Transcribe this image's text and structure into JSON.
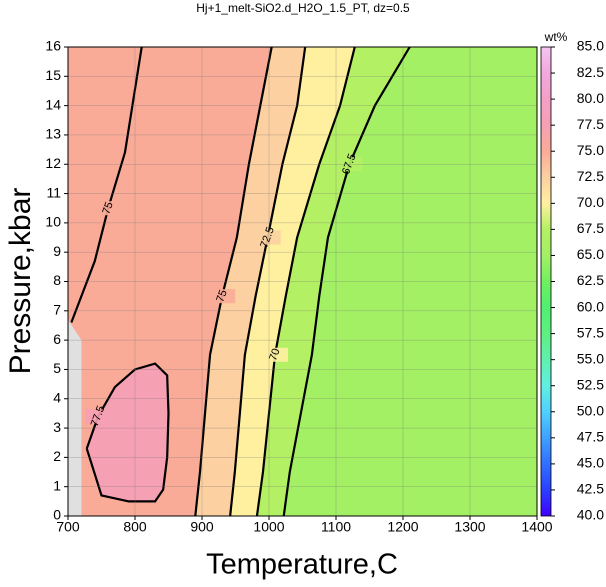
{
  "chart_data": {
    "type": "contour",
    "title": "Hj+1_melt-SiO2.d_H2O_1.5_PT, dz=0.5",
    "x_label": "Temperature,C",
    "y_label": "Pressure,kbar",
    "xlim": [
      700,
      1400
    ],
    "xticks": [
      700,
      800,
      900,
      1000,
      1100,
      1200,
      1300,
      1400
    ],
    "ylim": [
      0,
      16
    ],
    "yticks": [
      0,
      1,
      2,
      3,
      4,
      5,
      6,
      7,
      8,
      9,
      10,
      11,
      12,
      13,
      14,
      15,
      16
    ],
    "grid": true,
    "colorbar": {
      "label": "wt%",
      "lim": [
        40,
        85
      ],
      "ticks": [
        {
          "value": 40,
          "label": "40.0"
        },
        {
          "value": 42.5,
          "label": "42.5"
        },
        {
          "value": 45,
          "label": "45.0"
        },
        {
          "value": 47.5,
          "label": "47.5"
        },
        {
          "value": 50,
          "label": "50.0"
        },
        {
          "value": 52.5,
          "label": "52.5"
        },
        {
          "value": 55,
          "label": "55.0"
        },
        {
          "value": 57.5,
          "label": "57.5"
        },
        {
          "value": 60,
          "label": "60.0"
        },
        {
          "value": 62.5,
          "label": "62.5"
        },
        {
          "value": 65,
          "label": "65.0"
        },
        {
          "value": 67.5,
          "label": "67.5"
        },
        {
          "value": 70,
          "label": "70.0"
        },
        {
          "value": 72.5,
          "label": "72.5"
        },
        {
          "value": 75,
          "label": "75.0"
        },
        {
          "value": 77.5,
          "label": "77.5"
        },
        {
          "value": 80,
          "label": "80.0"
        },
        {
          "value": 82.5,
          "label": "82.5"
        },
        {
          "value": 85,
          "label": "85.0"
        }
      ],
      "colors": [
        "#4000ff",
        "#2a40ff",
        "#3070ff",
        "#40a0ff",
        "#50d0ff",
        "#60f0e0",
        "#60f0b0",
        "#60f080",
        "#50f070",
        "#70f060",
        "#a3f065",
        "#b4f064",
        "#fff0a0",
        "#fcd0a0",
        "#f9ab98",
        "#f6a0b4",
        "#f3a0c8",
        "#f2a8dc",
        "#f6c4f2"
      ]
    },
    "contours": [
      {
        "level": 75,
        "x": [
          890,
          897,
          912,
          930,
          952,
          970,
          987,
          1004
        ],
        "y": [
          0,
          1.5,
          5.5,
          7.5,
          9.5,
          12,
          14,
          16
        ]
      },
      {
        "level": 72.5,
        "x": [
          942,
          949,
          964,
          980,
          998,
          1020,
          1042,
          1054
        ],
        "y": [
          0,
          1.5,
          5.5,
          7.5,
          9.5,
          12,
          14,
          16
        ]
      },
      {
        "level": 70,
        "x": [
          982,
          991,
          1009,
          1025,
          1042,
          1075,
          1106,
          1128
        ],
        "y": [
          0,
          1.5,
          5.5,
          7.5,
          9.5,
          12,
          14,
          16
        ]
      },
      {
        "level": 67.5,
        "x": [
          1022,
          1031,
          1064,
          1075,
          1088,
          1120,
          1158,
          1210
        ],
        "y": [
          0,
          1.5,
          5.5,
          7.5,
          9.5,
          12,
          14,
          16
        ]
      },
      {
        "level": 77.5,
        "x": [
          728,
          745,
          770,
          800,
          830,
          848,
          850,
          848,
          842,
          830,
          790,
          750,
          728
        ],
        "y": [
          2.3,
          3.4,
          4.4,
          5.0,
          5.2,
          4.8,
          3.5,
          2.0,
          0.9,
          0.5,
          0.5,
          0.7,
          2.3
        ]
      },
      {
        "level": 75,
        "x": [
          705,
          725,
          740,
          760,
          785,
          810
        ],
        "y": [
          6.6,
          7.8,
          8.7,
          10.5,
          12.4,
          16
        ]
      }
    ]
  }
}
